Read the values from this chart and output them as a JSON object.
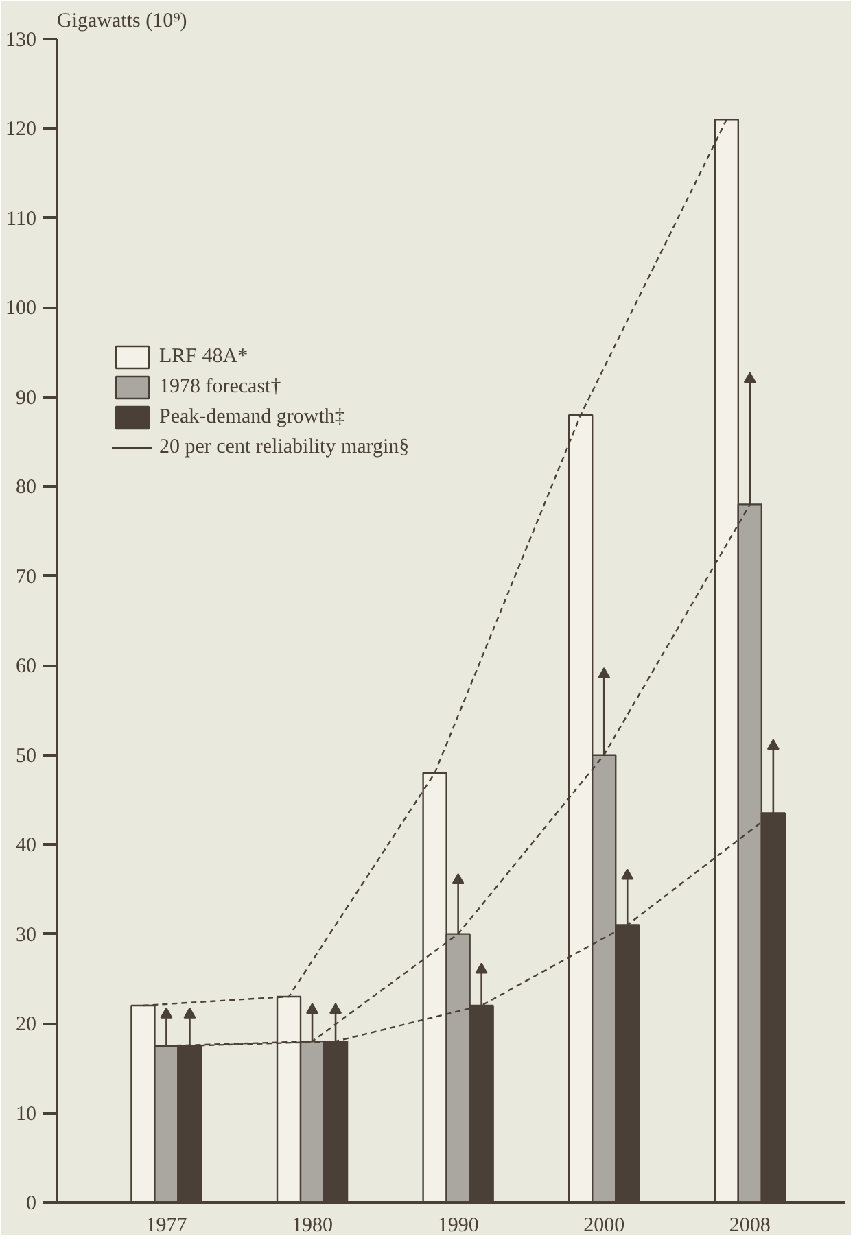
{
  "chart_data": {
    "type": "bar",
    "ylabel": "Gigawatts (10⁹)",
    "categories": [
      "1977",
      "1980",
      "1990",
      "2000",
      "2008"
    ],
    "series": [
      {
        "name": "LRF 48A*",
        "color": "#f3f1e8",
        "values": [
          22,
          23,
          48,
          88,
          121
        ],
        "line_style": "dashed"
      },
      {
        "name": "1978 forecast†",
        "color": "#a9a79f",
        "values": [
          17.5,
          18,
          30,
          50,
          78
        ],
        "line_style": "dashed",
        "errors": [
          [
            17.5,
            21
          ],
          [
            18,
            21.5
          ],
          [
            30,
            36
          ],
          [
            50,
            59
          ],
          [
            78,
            92
          ]
        ]
      },
      {
        "name": "Peak-demand growth‡",
        "color": "#4a4038",
        "values": [
          17.5,
          18,
          22,
          31,
          43.5
        ],
        "line_style": "dashed",
        "errors": [
          [
            17.5,
            21
          ],
          [
            18,
            21.5
          ],
          [
            22,
            26
          ],
          [
            31,
            36.5
          ],
          [
            43.5,
            51
          ]
        ]
      }
    ],
    "annotations": [
      "20 per cent reliability margin§"
    ],
    "ylim": [
      0,
      130
    ],
    "yticks": [
      0,
      10,
      20,
      30,
      40,
      50,
      60,
      70,
      80,
      90,
      100,
      110,
      120,
      130
    ],
    "grid": false,
    "legend": "top left"
  }
}
